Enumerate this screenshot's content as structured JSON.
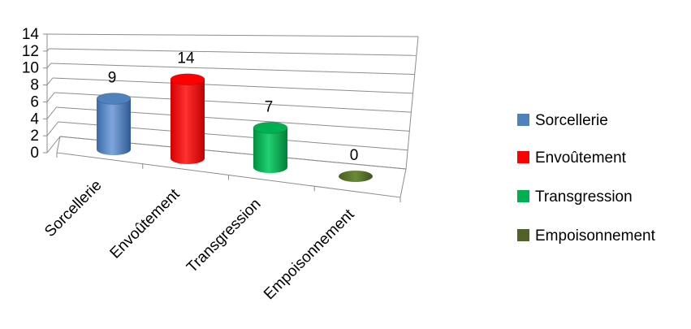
{
  "chart_data": {
    "type": "bar",
    "style": "3d-cylinder",
    "categories": [
      "Sorcellerie",
      "Envoûtement",
      "Transgression",
      "Empoisonnement"
    ],
    "values": [
      9,
      14,
      7,
      0
    ],
    "colors": [
      "#4f81bd",
      "#ff0000",
      "#00b050",
      "#4f6228"
    ],
    "ylim": [
      0,
      14
    ],
    "yticks": [
      "0",
      "2",
      "4",
      "6",
      "8",
      "10",
      "12",
      "14"
    ],
    "grid": true,
    "legend": {
      "position": "right",
      "entries": [
        "Sorcellerie",
        "Envoûtement",
        "Transgression",
        "Empoisonnement"
      ]
    }
  }
}
